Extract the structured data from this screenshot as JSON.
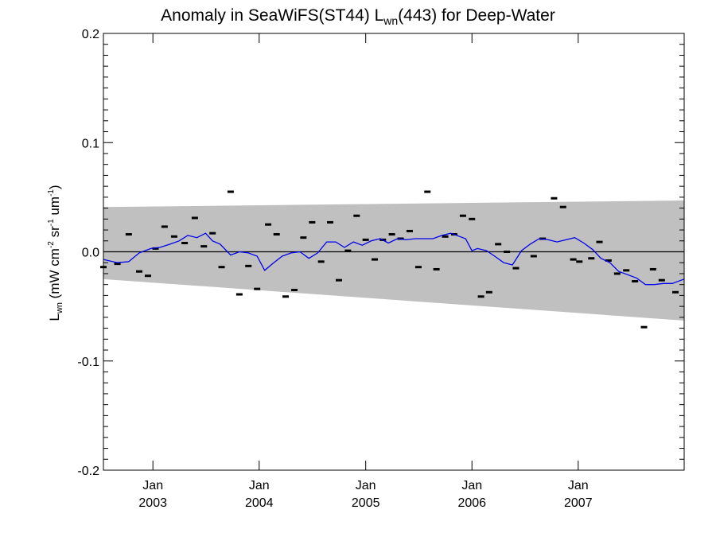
{
  "chart_data": {
    "type": "scatter",
    "title": {
      "prefix": "Anomaly in SeaWiFS(ST44) L",
      "sub": "wn",
      "suffix": "(443) for Deep-Water"
    },
    "ylabel": {
      "main": "L",
      "sub": "wn",
      "part1": " (mW cm",
      "sup1": "-2",
      "part2": " sr",
      "sup2": "-1",
      "part3": " um",
      "sup3": "-1",
      "part4": ")"
    },
    "ylim": [
      -0.2,
      0.2
    ],
    "y_ticks": [
      {
        "value": 0.2,
        "label": "0.2"
      },
      {
        "value": 0.1,
        "label": "0.1"
      },
      {
        "value": 0.0,
        "label": "0.0"
      },
      {
        "value": -0.1,
        "label": "-0.1"
      },
      {
        "value": -0.2,
        "label": "-0.2"
      }
    ],
    "xlim": [
      "2002-07-15",
      "2007-12-31"
    ],
    "x_ticks": [
      {
        "date": "2003-01-01",
        "month": "Jan",
        "year": "2003"
      },
      {
        "date": "2004-01-01",
        "month": "Jan",
        "year": "2004"
      },
      {
        "date": "2005-01-01",
        "month": "Jan",
        "year": "2005"
      },
      {
        "date": "2006-01-01",
        "month": "Jan",
        "year": "2006"
      },
      {
        "date": "2007-01-01",
        "month": "Jan",
        "year": "2007"
      }
    ],
    "zero_line": 0.0,
    "band": {
      "color": "#c0c0c0",
      "upper": [
        {
          "date": "2002-07-15",
          "y": 0.041
        },
        {
          "date": "2007-12-31",
          "y": 0.047
        }
      ],
      "lower": [
        {
          "date": "2002-07-15",
          "y": -0.025
        },
        {
          "date": "2007-12-31",
          "y": -0.063
        }
      ]
    },
    "points": {
      "color": "#000000",
      "values": [
        {
          "date": "2002-07-15",
          "y": -0.014
        },
        {
          "date": "2002-09-01",
          "y": -0.011
        },
        {
          "date": "2002-10-10",
          "y": 0.016
        },
        {
          "date": "2002-11-15",
          "y": -0.018
        },
        {
          "date": "2002-12-15",
          "y": -0.022
        },
        {
          "date": "2003-01-10",
          "y": 0.003
        },
        {
          "date": "2003-02-10",
          "y": 0.023
        },
        {
          "date": "2003-03-15",
          "y": 0.014
        },
        {
          "date": "2003-04-20",
          "y": 0.008
        },
        {
          "date": "2003-05-25",
          "y": 0.031
        },
        {
          "date": "2003-06-25",
          "y": 0.005
        },
        {
          "date": "2003-07-25",
          "y": 0.017
        },
        {
          "date": "2003-08-25",
          "y": -0.014
        },
        {
          "date": "2003-09-25",
          "y": 0.055
        },
        {
          "date": "2003-10-25",
          "y": -0.039
        },
        {
          "date": "2003-11-25",
          "y": -0.013
        },
        {
          "date": "2003-12-25",
          "y": -0.034
        },
        {
          "date": "2004-02-01",
          "y": 0.025
        },
        {
          "date": "2004-03-01",
          "y": 0.016
        },
        {
          "date": "2004-04-01",
          "y": -0.041
        },
        {
          "date": "2004-05-01",
          "y": -0.035
        },
        {
          "date": "2004-06-01",
          "y": 0.013
        },
        {
          "date": "2004-07-01",
          "y": 0.027
        },
        {
          "date": "2004-08-01",
          "y": -0.009
        },
        {
          "date": "2004-09-01",
          "y": 0.027
        },
        {
          "date": "2004-10-01",
          "y": -0.026
        },
        {
          "date": "2004-11-01",
          "y": 0.001
        },
        {
          "date": "2004-12-01",
          "y": 0.033
        },
        {
          "date": "2005-01-01",
          "y": 0.011
        },
        {
          "date": "2005-02-01",
          "y": -0.007
        },
        {
          "date": "2005-03-01",
          "y": 0.011
        },
        {
          "date": "2005-04-01",
          "y": 0.016
        },
        {
          "date": "2005-05-01",
          "y": 0.012
        },
        {
          "date": "2005-06-01",
          "y": 0.019
        },
        {
          "date": "2005-07-01",
          "y": -0.014
        },
        {
          "date": "2005-08-01",
          "y": 0.055
        },
        {
          "date": "2005-09-01",
          "y": -0.016
        },
        {
          "date": "2005-10-01",
          "y": 0.014
        },
        {
          "date": "2005-11-01",
          "y": 0.016
        },
        {
          "date": "2005-12-01",
          "y": 0.033
        },
        {
          "date": "2006-01-01",
          "y": 0.03
        },
        {
          "date": "2006-02-01",
          "y": -0.041
        },
        {
          "date": "2006-03-01",
          "y": -0.037
        },
        {
          "date": "2006-04-01",
          "y": 0.007
        },
        {
          "date": "2006-05-01",
          "y": 0.0
        },
        {
          "date": "2006-06-01",
          "y": -0.015
        },
        {
          "date": "2006-08-01",
          "y": -0.004
        },
        {
          "date": "2006-09-01",
          "y": 0.012
        },
        {
          "date": "2006-10-10",
          "y": 0.049
        },
        {
          "date": "2006-11-10",
          "y": 0.041
        },
        {
          "date": "2006-12-15",
          "y": -0.007
        },
        {
          "date": "2007-01-05",
          "y": -0.009
        },
        {
          "date": "2007-02-15",
          "y": -0.006
        },
        {
          "date": "2007-03-15",
          "y": 0.009
        },
        {
          "date": "2007-04-15",
          "y": -0.008
        },
        {
          "date": "2007-05-15",
          "y": -0.02
        },
        {
          "date": "2007-06-15",
          "y": -0.017
        },
        {
          "date": "2007-07-15",
          "y": -0.027
        },
        {
          "date": "2007-08-15",
          "y": -0.069
        },
        {
          "date": "2007-09-15",
          "y": -0.016
        },
        {
          "date": "2007-10-15",
          "y": -0.026
        },
        {
          "date": "2007-12-01",
          "y": -0.037
        }
      ]
    },
    "series": [
      {
        "color": "#0000ee",
        "points": [
          {
            "date": "2002-07-15",
            "y": -0.007
          },
          {
            "date": "2002-09-01",
            "y": -0.01
          },
          {
            "date": "2002-10-10",
            "y": -0.009
          },
          {
            "date": "2002-11-15",
            "y": -0.001
          },
          {
            "date": "2002-12-25",
            "y": 0.003
          },
          {
            "date": "2003-01-25",
            "y": 0.004
          },
          {
            "date": "2003-03-01",
            "y": 0.007
          },
          {
            "date": "2003-04-01",
            "y": 0.01
          },
          {
            "date": "2003-05-01",
            "y": 0.015
          },
          {
            "date": "2003-06-01",
            "y": 0.013
          },
          {
            "date": "2003-07-01",
            "y": 0.017
          },
          {
            "date": "2003-07-25",
            "y": 0.01
          },
          {
            "date": "2003-08-20",
            "y": 0.007
          },
          {
            "date": "2003-09-25",
            "y": -0.003
          },
          {
            "date": "2003-10-25",
            "y": -0.0
          },
          {
            "date": "2003-11-25",
            "y": -0.001
          },
          {
            "date": "2003-12-25",
            "y": -0.004
          },
          {
            "date": "2004-01-20",
            "y": -0.017
          },
          {
            "date": "2004-02-20",
            "y": -0.01
          },
          {
            "date": "2004-03-20",
            "y": -0.004
          },
          {
            "date": "2004-04-20",
            "y": -0.001
          },
          {
            "date": "2004-05-20",
            "y": 0.0
          },
          {
            "date": "2004-06-20",
            "y": -0.006
          },
          {
            "date": "2004-07-20",
            "y": -0.001
          },
          {
            "date": "2004-08-20",
            "y": 0.009
          },
          {
            "date": "2004-09-20",
            "y": 0.009
          },
          {
            "date": "2004-10-20",
            "y": 0.004
          },
          {
            "date": "2004-11-20",
            "y": 0.009
          },
          {
            "date": "2004-12-20",
            "y": 0.006
          },
          {
            "date": "2005-01-20",
            "y": 0.01
          },
          {
            "date": "2005-02-20",
            "y": 0.012
          },
          {
            "date": "2005-03-20",
            "y": 0.008
          },
          {
            "date": "2005-04-20",
            "y": 0.012
          },
          {
            "date": "2005-05-20",
            "y": 0.011
          },
          {
            "date": "2005-06-20",
            "y": 0.012
          },
          {
            "date": "2005-07-20",
            "y": 0.012
          },
          {
            "date": "2005-08-20",
            "y": 0.012
          },
          {
            "date": "2005-09-20",
            "y": 0.015
          },
          {
            "date": "2005-10-20",
            "y": 0.017
          },
          {
            "date": "2005-11-20",
            "y": 0.014
          },
          {
            "date": "2005-12-10",
            "y": 0.012
          },
          {
            "date": "2006-01-01",
            "y": 0.001
          },
          {
            "date": "2006-01-20",
            "y": 0.003
          },
          {
            "date": "2006-02-20",
            "y": 0.001
          },
          {
            "date": "2006-03-20",
            "y": -0.004
          },
          {
            "date": "2006-04-20",
            "y": -0.01
          },
          {
            "date": "2006-05-20",
            "y": -0.012
          },
          {
            "date": "2006-06-20",
            "y": 0.001
          },
          {
            "date": "2006-07-20",
            "y": 0.007
          },
          {
            "date": "2006-08-20",
            "y": 0.012
          },
          {
            "date": "2006-09-20",
            "y": 0.011
          },
          {
            "date": "2006-10-20",
            "y": 0.009
          },
          {
            "date": "2006-11-20",
            "y": 0.011
          },
          {
            "date": "2006-12-20",
            "y": 0.013
          },
          {
            "date": "2007-01-20",
            "y": 0.008
          },
          {
            "date": "2007-02-20",
            "y": 0.002
          },
          {
            "date": "2007-03-20",
            "y": -0.006
          },
          {
            "date": "2007-04-20",
            "y": -0.01
          },
          {
            "date": "2007-05-20",
            "y": -0.018
          },
          {
            "date": "2007-06-20",
            "y": -0.021
          },
          {
            "date": "2007-07-20",
            "y": -0.024
          },
          {
            "date": "2007-08-20",
            "y": -0.03
          },
          {
            "date": "2007-09-20",
            "y": -0.03
          },
          {
            "date": "2007-10-20",
            "y": -0.029
          },
          {
            "date": "2007-11-20",
            "y": -0.029
          },
          {
            "date": "2007-12-31",
            "y": -0.025
          }
        ]
      }
    ],
    "grid": false
  }
}
